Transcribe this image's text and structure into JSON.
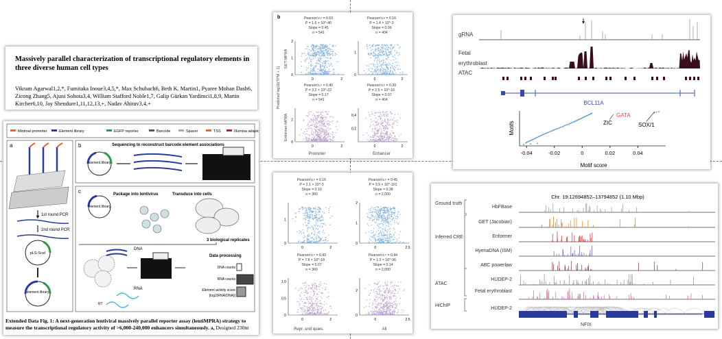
{
  "paper": {
    "title": "Massively parallel characterization of transcriptional regulatory elements in three diverse human cell types",
    "authors": "Vikram Agarwal1,2,*, Fumitaka Inoue3,4,5,*, Max Schubach6, Beth K. Martin1, Pyaree Mohan Dash6, Zicong Zhang5, Ajuni Sohota3,4, William Stafford Noble1,7, Galip Gürkan Yardimci1,8,9, Martin Kircher6,10, Jay Shendure1,11,12,13,+, Nadav Ahituv3,4,+"
  },
  "figure": {
    "legend": [
      "Minimal promoter",
      "Element library",
      "EGFP reporter",
      "Barcode",
      "Spacer",
      "TSS",
      "Illumina adaptor"
    ],
    "panel_a": {
      "label": "a",
      "pcr1": "1st round PCR",
      "pcr2": "2nd round PCR",
      "plasmid": "pLS-SceI",
      "library": "element library"
    },
    "panel_b": {
      "label": "b",
      "title": "Sequencing to reconstruct barcode:element associations",
      "library": "element library"
    },
    "panel_c": {
      "label": "c",
      "library": "element library",
      "package": "Package into lentivirus",
      "transduce": "Transduce into cells",
      "replicates": "3 biological replicates",
      "dna": "DNA",
      "rna": "RNA",
      "rt": "RT",
      "processing": "Data processing",
      "dna_counts": "DNA counts",
      "rna_counts": "RNA counts",
      "score": "Element activity score",
      "score_formula": "[log2(RNA/DNA)]"
    },
    "caption_bold": "Extended Data Fig. 1: A next-generation lentiviral massively parallel reporter assay (lentiMPRA) strategy to measure the transcriptional regulatory activity of >6,000-240,000 enhancers simultaneously. a,",
    "caption_rest": " Designed 230nt"
  },
  "scatter": {
    "panel_label": "b",
    "ylabel": "Predicted log10(TPM + 1)",
    "row_labels": [
      "GET-MPRA",
      "Enformer-MPRA"
    ]
  },
  "chart_data": [
    {
      "type": "scatter",
      "row": "GET-MPRA",
      "group": "Promoter",
      "stats": [
        "Pearson's r = 0.53",
        "P = 1.6 × 10^-40",
        "Slope = 0.45",
        "n = 541"
      ],
      "n": 541,
      "xlim": [
        -1.2,
        2.2
      ],
      "ylim": [
        0,
        2
      ],
      "xticks": [
        "0",
        "2"
      ],
      "yticks": [
        "0",
        "1",
        "2"
      ],
      "color": "#7fb0de"
    },
    {
      "type": "scatter",
      "row": "GET-MPRA",
      "group": "Enhancer",
      "stats": [
        "Pearson's r = 0.16",
        "P = 1.4 × 10^-3",
        "Slope = 0.09",
        "n = 404"
      ],
      "n": 404,
      "xlim": [
        -1.2,
        2.4
      ],
      "ylim": [
        0,
        1.5
      ],
      "xticks": [
        "0",
        "2"
      ],
      "yticks": [
        "0",
        "1"
      ],
      "color": "#7fb0de"
    },
    {
      "type": "scatter",
      "row": "Enformer-MPRA",
      "group": "Promoter",
      "stats": [
        "Pearson's r = 0.40",
        "P = 3.2 × 10^-22",
        "Slope = 0.17",
        "n = 541"
      ],
      "n": 541,
      "xlim": [
        -1.2,
        2.2
      ],
      "ylim": [
        0,
        3
      ],
      "xticks": [
        "0",
        "2"
      ],
      "yticks": [
        "0",
        "2"
      ],
      "color": "#b9a3cc"
    },
    {
      "type": "scatter",
      "row": "Enformer-MPRA",
      "group": "Enhancer",
      "stats": [
        "Pearson's r = 0.39",
        "P = 2.5 × 10^-16",
        "Slope = 0.07",
        "n = 404"
      ],
      "n": 404,
      "xlim": [
        -1.2,
        2.4
      ],
      "ylim": [
        0,
        0.5
      ],
      "xticks": [
        "0",
        "2"
      ],
      "yticks": [
        "0.2",
        "0.4"
      ],
      "color": "#b9a3cc"
    },
    {
      "type": "scatter",
      "row": "GET-MPRA",
      "group": "Repr. and quies.",
      "stats": [
        "Pearson's r = 0.16",
        "P = 2.1 × 10^-3",
        "Slope = 0.10",
        "n = 360"
      ],
      "n": 360,
      "xlim": [
        -1,
        2.5
      ],
      "ylim": [
        0,
        1.7
      ],
      "xticks": [
        "0",
        "2"
      ],
      "yticks": [
        "0",
        "1"
      ],
      "color": "#7fb0de"
    },
    {
      "type": "scatter",
      "row": "GET-MPRA",
      "group": "All",
      "stats": [
        "Pearson's r = 0.45",
        "P = 3.9 × 10^-101",
        "Slope = 0.38",
        "n = 2,000"
      ],
      "n": 2000,
      "xlim": [
        -1.2,
        2.6
      ],
      "ylim": [
        0,
        2
      ],
      "xticks": [
        "0",
        "2.5"
      ],
      "yticks": [
        "0",
        "1",
        "2"
      ],
      "color": "#7fb0de"
    },
    {
      "type": "scatter",
      "row": "Enformer-MPRA",
      "group": "Repr. and quies.",
      "stats": [
        "Pearson's r = 0.43",
        "P = 7.8 × 10^-18",
        "Slope = 0.07",
        "n = 360"
      ],
      "n": 360,
      "xlim": [
        -1,
        2.5
      ],
      "ylim": [
        0,
        1.1
      ],
      "xticks": [
        "0",
        "2"
      ],
      "yticks": [
        "0",
        "0.5",
        "1.0"
      ],
      "color": "#b9a3cc"
    },
    {
      "type": "scatter",
      "row": "Enformer-MPRA",
      "group": "All",
      "stats": [
        "Pearson's r = 0.44",
        "P = 1.3 × 10^-96",
        "Slope = 0.14",
        "n = 2,000"
      ],
      "n": 2000,
      "xlim": [
        -1.2,
        2.6
      ],
      "ylim": [
        0,
        3
      ],
      "xticks": [
        "0",
        "2.5"
      ],
      "yticks": [
        "0",
        "2"
      ],
      "color": "#b9a3cc"
    },
    {
      "type": "line",
      "title": "",
      "xlabel": "Motif score",
      "ylabel": "Motifs",
      "xlim": [
        -0.045,
        0.06
      ],
      "xticks": [
        "-0.04",
        "-0.02",
        "0",
        "0.02",
        "0.04"
      ],
      "annotations": [
        "ZIC",
        "GATA",
        "SOX/1"
      ],
      "annotation_colors": [
        "#222222",
        "#e8404a",
        "#222222"
      ]
    }
  ],
  "bcl11a": {
    "tracks": [
      "gRNA",
      "Fetal",
      "erythroblast",
      "ATAC"
    ],
    "gene": "BCL11A"
  },
  "nfix": {
    "region": "Chr. 19:12694852–13794852 (1.10 Mbp)",
    "groups": [
      "Ground truth",
      "Inferred CRE",
      "ATAC",
      "HiChIP"
    ],
    "tracks": [
      {
        "label": "HbFBase",
        "color": "#a0a0a0"
      },
      {
        "label": "GET (Jacobian)",
        "color": "#e98a2c"
      },
      {
        "label": "Enformer",
        "color": "#d23a3a"
      },
      {
        "label": "HyenaDNA (ISM)",
        "color": "#7e6bb5"
      },
      {
        "label": "ABC powerlaw",
        "color": "#8a4a4a"
      },
      {
        "label": "HUDEP-2",
        "color": "#9a9a9a"
      },
      {
        "label": "Fetal erythroblast",
        "color": "#d07ab0"
      },
      {
        "label": "HUDEP-2",
        "color": "#bbbbbb"
      }
    ],
    "gene": "NFIX"
  }
}
